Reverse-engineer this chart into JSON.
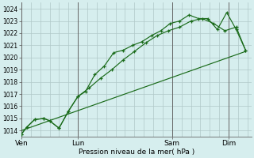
{
  "xlabel": "Pression niveau de la mer( hPa )",
  "bg_color": "#d6eeee",
  "grid_color": "#b0c8c8",
  "line_color": "#1a6b1a",
  "ylim": [
    1013.5,
    1024.5
  ],
  "day_labels": [
    "Ven",
    "Lun",
    "Sam",
    "Dim"
  ],
  "day_positions": [
    0,
    3,
    8,
    11
  ],
  "series1": {
    "x": [
      0.0,
      0.3,
      0.7,
      1.2,
      1.5,
      2.0,
      2.5,
      3.0,
      3.4,
      3.9,
      4.4,
      4.9,
      5.4,
      5.9,
      6.4,
      6.9,
      7.4,
      7.9,
      8.4,
      8.9,
      9.4,
      9.9,
      10.4,
      10.9,
      11.4,
      11.9
    ],
    "y": [
      1013.7,
      1014.3,
      1014.9,
      1015.0,
      1014.8,
      1014.2,
      1015.6,
      1016.8,
      1017.2,
      1018.6,
      1019.3,
      1020.4,
      1020.6,
      1021.0,
      1021.3,
      1021.8,
      1022.2,
      1022.8,
      1023.0,
      1023.5,
      1023.2,
      1023.2,
      1022.3,
      1023.7,
      1022.3,
      1020.6
    ]
  },
  "series2": {
    "x": [
      0.0,
      0.3,
      0.7,
      1.2,
      1.5,
      2.0,
      2.5,
      3.0,
      3.6,
      4.2,
      4.8,
      5.4,
      6.0,
      6.6,
      7.2,
      7.8,
      8.4,
      9.0,
      9.6,
      10.2,
      10.8,
      11.4,
      11.9
    ],
    "y": [
      1013.7,
      1014.3,
      1014.9,
      1015.0,
      1014.8,
      1014.2,
      1015.6,
      1016.8,
      1017.5,
      1018.3,
      1019.0,
      1019.8,
      1020.5,
      1021.2,
      1021.8,
      1022.2,
      1022.5,
      1023.0,
      1023.2,
      1022.8,
      1022.2,
      1022.5,
      1020.6
    ]
  },
  "series3": {
    "x": [
      0.0,
      11.9
    ],
    "y": [
      1014.0,
      1020.5
    ]
  },
  "xlim": [
    0.0,
    12.2
  ],
  "yticks": [
    1014,
    1015,
    1016,
    1017,
    1018,
    1019,
    1020,
    1021,
    1022,
    1023,
    1024
  ],
  "ytick_fontsize": 5.5,
  "xtick_fontsize": 6.5,
  "xlabel_fontsize": 6.5,
  "grid_minor_color": "#c8dede",
  "spine_color": "#666666"
}
